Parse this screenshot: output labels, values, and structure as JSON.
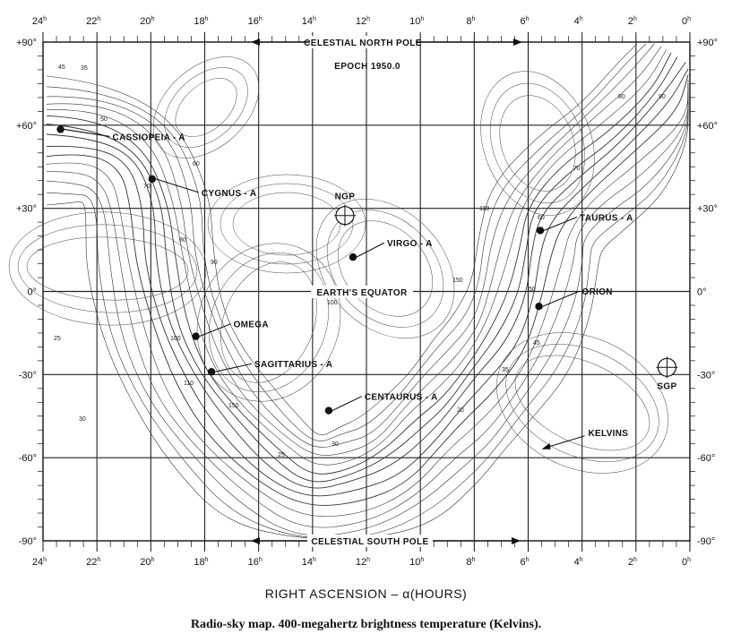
{
  "title_lines": [
    "CELESTIAL NORTH POLE",
    "EPOCH 1950.0"
  ],
  "south_pole_label": "CELESTIAL SOUTH POLE",
  "equator_label": "EARTH'S EQUATOR",
  "x_axis_title": "RIGHT ASCENSION  – α(HOURS)",
  "caption": "Radio-sky map. 400-megahertz brightness temperature (Kelvins).",
  "ra_ticks": [
    {
      "ra": 24,
      "num": "24",
      "sup": "h"
    },
    {
      "ra": 22,
      "num": "22",
      "sup": "h"
    },
    {
      "ra": 20,
      "num": "20",
      "sup": "h"
    },
    {
      "ra": 18,
      "num": "18",
      "sup": "h"
    },
    {
      "ra": 16,
      "num": "16",
      "sup": "h"
    },
    {
      "ra": 14,
      "num": "14",
      "sup": "h"
    },
    {
      "ra": 12,
      "num": "12",
      "sup": "h"
    },
    {
      "ra": 10,
      "num": "10",
      "sup": "h"
    },
    {
      "ra": 8,
      "num": "8",
      "sup": "h"
    },
    {
      "ra": 6,
      "num": "6",
      "sup": "h"
    },
    {
      "ra": 4,
      "num": "4",
      "sup": "h"
    },
    {
      "ra": 2,
      "num": "2",
      "sup": "h"
    },
    {
      "ra": 0,
      "num": "0",
      "sup": "h"
    }
  ],
  "dec_ticks": [
    {
      "dec": 90,
      "label": "+90°"
    },
    {
      "dec": 60,
      "label": "+60°"
    },
    {
      "dec": 30,
      "label": "+30°"
    },
    {
      "dec": 0,
      "label": "0°"
    },
    {
      "dec": -30,
      "label": "-30°"
    },
    {
      "dec": -60,
      "label": "-60°"
    },
    {
      "dec": -90,
      "label": "-90°"
    }
  ],
  "sources": [
    {
      "name": "CASSIOPEIA - A",
      "ra": 23.35,
      "dec": 58.5
    },
    {
      "name": "CYGNUS - A",
      "ra": 19.95,
      "dec": 40.6
    },
    {
      "name": "VIRGO - A",
      "ra": 12.5,
      "dec": 12.4
    },
    {
      "name": "TAURUS - A",
      "ra": 5.55,
      "dec": 22.0
    },
    {
      "name": "ORION",
      "ra": 5.6,
      "dec": -5.4
    },
    {
      "name": "OMEGA",
      "ra": 18.33,
      "dec": -16.2
    },
    {
      "name": "SAGITTARIUS - A",
      "ra": 17.75,
      "dec": -29.0
    },
    {
      "name": "CENTAURUS - A",
      "ra": 13.4,
      "dec": -43.0
    }
  ],
  "markers": [
    {
      "name": "NGP",
      "ra": 12.8,
      "dec": 27.4
    },
    {
      "name": "SGP",
      "ra": 0.85,
      "dec": -27.4
    }
  ],
  "annotation": {
    "name": "KELVINS",
    "ra": 5.5,
    "dec": -56.0
  },
  "contour_values": [
    "35",
    "45",
    "50",
    "60",
    "70",
    "80",
    "90",
    "100",
    "110",
    "150",
    "25",
    "30",
    "20"
  ]
}
